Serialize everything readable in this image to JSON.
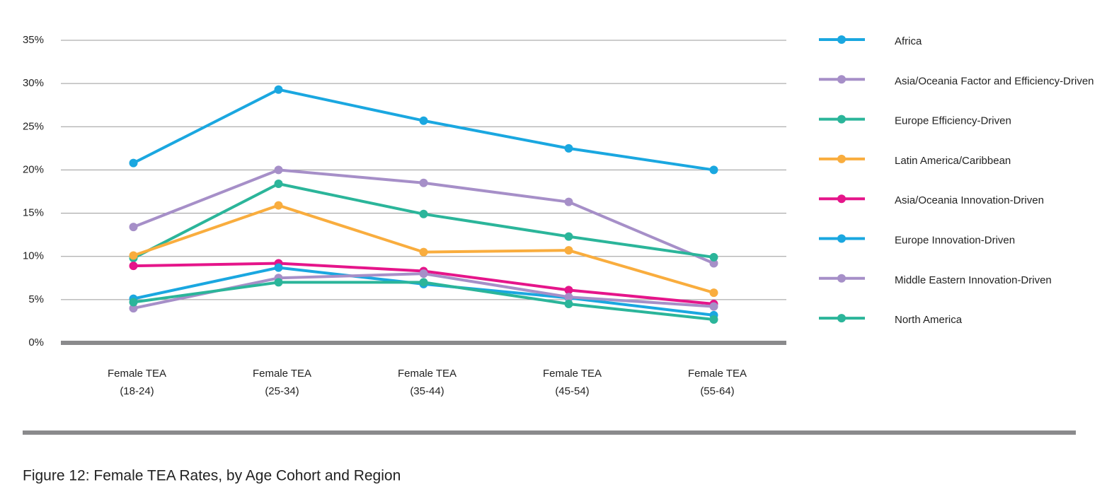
{
  "chart_data": {
    "type": "line",
    "title": "Figure 12: Female TEA Rates, by Age Cohort and Region",
    "categories": [
      [
        "Female TEA",
        "(18-24)"
      ],
      [
        "Female TEA",
        "(25-34)"
      ],
      [
        "Female TEA",
        "(35-44)"
      ],
      [
        "Female TEA",
        "(45-54)"
      ],
      [
        "Female TEA",
        "(55-64)"
      ]
    ],
    "ylim": [
      0,
      35
    ],
    "yticks": [
      {
        "value": 0,
        "label": "0%"
      },
      {
        "value": 5,
        "label": "5%"
      },
      {
        "value": 10,
        "label": "10%"
      },
      {
        "value": 15,
        "label": "15%"
      },
      {
        "value": 20,
        "label": "20%"
      },
      {
        "value": 25,
        "label": "25%"
      },
      {
        "value": 30,
        "label": "30%"
      },
      {
        "value": 35,
        "label": "35%"
      }
    ],
    "grid": true,
    "legend": "right",
    "series": [
      {
        "name": "Africa",
        "color": "#1aa7e0",
        "values": [
          20.8,
          29.3,
          25.7,
          22.5,
          20.0
        ]
      },
      {
        "name": "Asia/Oceania Factor and Efficiency-Driven",
        "color": "#a68fc8",
        "values": [
          13.4,
          20.0,
          18.5,
          16.3,
          9.2
        ]
      },
      {
        "name": "Europe Efficiency-Driven",
        "color": "#2bb59a",
        "values": [
          9.8,
          18.4,
          14.9,
          12.3,
          9.9
        ]
      },
      {
        "name": "Latin America/Caribbean",
        "color": "#f9ad3e",
        "values": [
          10.1,
          15.9,
          10.5,
          10.7,
          5.8
        ]
      },
      {
        "name": "Asia/Oceania Innovation-Driven",
        "color": "#e5158a",
        "values": [
          8.9,
          9.2,
          8.3,
          6.1,
          4.5
        ]
      },
      {
        "name": "Europe Innovation-Driven",
        "color": "#1aa7e0",
        "values": [
          5.1,
          8.7,
          6.8,
          5.2,
          3.2
        ]
      },
      {
        "name": "Middle Eastern Innovation-Driven",
        "color": "#a68fc8",
        "values": [
          4.0,
          7.5,
          8.0,
          5.3,
          4.2
        ]
      },
      {
        "name": "North America",
        "color": "#2bb59a",
        "values": [
          4.7,
          7.0,
          7.0,
          4.5,
          2.7
        ]
      }
    ]
  }
}
